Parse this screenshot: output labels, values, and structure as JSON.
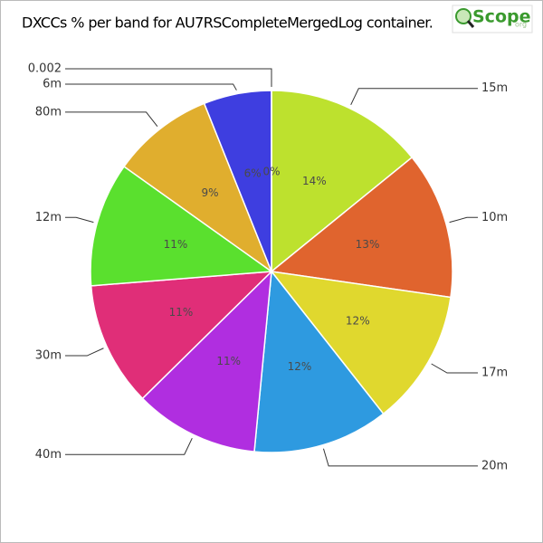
{
  "chart_data": {
    "type": "pie",
    "title": "DXCCs % per band for AU7RSCompleteMergedLog container.",
    "categories": [
      "15m",
      "10m",
      "17m",
      "20m",
      "40m",
      "30m",
      "12m",
      "80m",
      "6m",
      "0.002"
    ],
    "values": [
      14,
      13,
      12,
      12,
      11,
      11,
      11,
      9,
      6,
      0
    ],
    "value_labels": [
      "14%",
      "13%",
      "12%",
      "12%",
      "11%",
      "11%",
      "11%",
      "9%",
      "6%",
      "0%"
    ],
    "colors": [
      "#bde12e",
      "#e0642e",
      "#e0d82e",
      "#2e9ae0",
      "#b02ee0",
      "#e02e78",
      "#5ae02e",
      "#e0ae2e",
      "#3e3ee0",
      "#2ee0a0"
    ]
  },
  "logo": {
    "text": "Scope",
    "suffix": "org"
  }
}
